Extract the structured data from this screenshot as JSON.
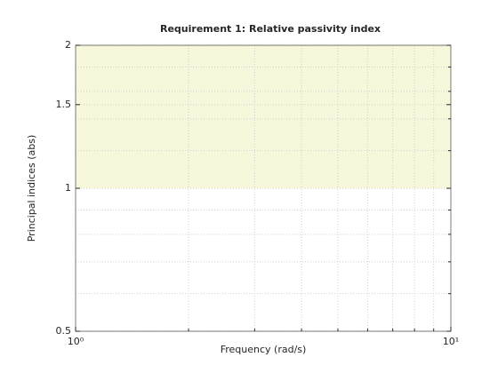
{
  "chart_data": {
    "type": "region",
    "title": "Requirement 1: Relative passivity index",
    "xlabel": "Frequency (rad/s)",
    "ylabel": "Principal indices (abs)",
    "xscale": "log",
    "yscale": "log",
    "xlim": [
      1,
      10
    ],
    "ylim": [
      0.5,
      2
    ],
    "xticks": [
      {
        "value": 1,
        "label": "10⁰"
      },
      {
        "value": 10,
        "label": "10¹"
      }
    ],
    "yticks": [
      0.5,
      1,
      1.5,
      2
    ],
    "xminorticks": [
      2,
      3,
      4,
      5,
      6,
      7,
      8,
      9
    ],
    "yminorticks": [
      0.6,
      0.7,
      0.8,
      0.9,
      1.2,
      1.4,
      1.6,
      1.8
    ],
    "grid": true,
    "region": [
      1,
      2
    ],
    "region_color": "#f7f7dc"
  }
}
